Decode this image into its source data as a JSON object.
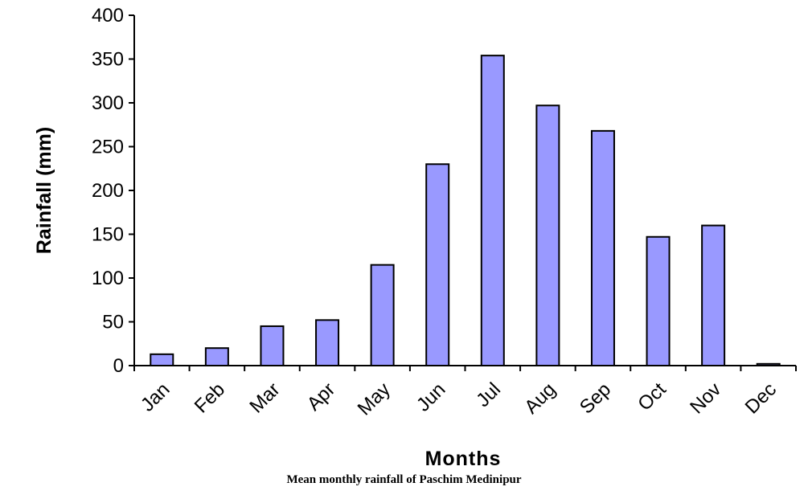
{
  "chart_data": {
    "type": "bar",
    "categories": [
      "Jan",
      "Feb",
      "Mar",
      "Apr",
      "May",
      "Jun",
      "Jul",
      "Aug",
      "Sep",
      "Oct",
      "Nov",
      "Dec"
    ],
    "values": [
      13,
      20,
      45,
      52,
      115,
      230,
      354,
      297,
      268,
      147,
      160,
      2
    ],
    "title": "",
    "xlabel": "Months",
    "ylabel": "Rainfall (mm)",
    "ylim": [
      0,
      400
    ],
    "yticks": [
      0,
      50,
      100,
      150,
      200,
      250,
      300,
      350,
      400
    ],
    "grid": false,
    "legend": "none",
    "bar_color": "#9999ff",
    "bar_edge_color": "#000000"
  },
  "caption": "Mean monthly rainfall of Paschim Medinipur"
}
